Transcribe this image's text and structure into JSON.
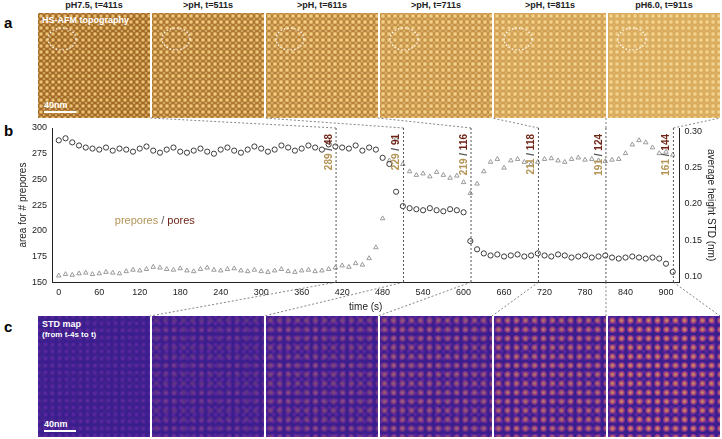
{
  "panel_letters": [
    "a",
    "b",
    "c"
  ],
  "panel_a": {
    "label": "HS-AFM topography",
    "frames": [
      "pH7.5, t=411s",
      ">pH, t=511s",
      ">pH, t=611s",
      ">pH, t=711s",
      ">pH, t=811s",
      "pH6.0, t=911s"
    ],
    "scale_bar": "40nm"
  },
  "panel_c": {
    "label": "STD map",
    "sublabel": "(from t-4s to t)",
    "frames": 6,
    "scale_bar": "40nm"
  },
  "chart_data": {
    "type": "scatter",
    "xlabel": "time (s)",
    "ylabel": "area for # prepores",
    "y2label": "average height STD (nm)",
    "xlim": [
      -10,
      920
    ],
    "xticks": [
      0,
      60,
      120,
      180,
      240,
      300,
      360,
      420,
      480,
      540,
      600,
      660,
      720,
      780,
      840,
      900
    ],
    "ylim": [
      150,
      300
    ],
    "yticks": [
      150,
      175,
      200,
      225,
      250,
      275,
      300
    ],
    "y2lim": [
      0.092,
      0.305
    ],
    "y2ticks": [
      {
        "value": 0.1,
        "label": "0.10"
      },
      0.15,
      {
        "value": 0.2,
        "label": "0.20"
      },
      0.25,
      {
        "value": 0.3,
        "label": "0.30"
      }
    ],
    "grid": false,
    "x": [
      0,
      10,
      20,
      30,
      40,
      50,
      60,
      70,
      80,
      90,
      100,
      110,
      120,
      130,
      140,
      150,
      160,
      170,
      180,
      190,
      200,
      210,
      220,
      230,
      240,
      250,
      260,
      270,
      280,
      290,
      300,
      310,
      320,
      330,
      340,
      350,
      360,
      370,
      380,
      390,
      400,
      410,
      420,
      430,
      440,
      450,
      460,
      470,
      480,
      490,
      500,
      510,
      520,
      530,
      540,
      550,
      560,
      570,
      580,
      590,
      600,
      610,
      620,
      630,
      640,
      650,
      660,
      670,
      680,
      690,
      700,
      710,
      720,
      730,
      740,
      750,
      760,
      770,
      780,
      790,
      800,
      810,
      820,
      830,
      840,
      850,
      860,
      870,
      880,
      890,
      900,
      910
    ],
    "series": [
      {
        "color": "#3a3a3a",
        "marker": "circle",
        "axis": "y",
        "values": [
          288,
          290,
          286,
          283,
          281,
          280,
          279,
          281,
          278,
          280,
          279,
          277,
          280,
          282,
          278,
          276,
          279,
          281,
          277,
          276,
          278,
          280,
          277,
          275,
          279,
          281,
          278,
          276,
          279,
          282,
          280,
          277,
          279,
          283,
          281,
          278,
          280,
          283,
          281,
          279,
          284,
          282,
          281,
          280,
          283,
          278,
          281,
          279,
          271,
          265,
          238,
          224,
          222,
          221,
          220,
          222,
          220,
          219,
          221,
          220,
          218,
          190,
          182,
          178,
          176,
          177,
          175,
          176,
          177,
          175,
          176,
          178,
          176,
          175,
          177,
          176,
          174,
          175,
          176,
          174,
          175,
          176,
          174,
          173,
          174,
          175,
          174,
          173,
          174,
          173,
          168,
          160
        ]
      },
      {
        "color": "#9a9a9a",
        "marker": "triangle",
        "axis": "y2",
        "values": [
          0.101,
          0.103,
          0.102,
          0.104,
          0.105,
          0.103,
          0.104,
          0.106,
          0.105,
          0.104,
          0.107,
          0.109,
          0.108,
          0.11,
          0.113,
          0.112,
          0.11,
          0.109,
          0.111,
          0.108,
          0.107,
          0.11,
          0.112,
          0.109,
          0.108,
          0.11,
          0.111,
          0.108,
          0.107,
          0.109,
          0.107,
          0.106,
          0.108,
          0.11,
          0.107,
          0.106,
          0.108,
          0.109,
          0.107,
          0.108,
          0.11,
          0.112,
          0.115,
          0.113,
          0.118,
          0.116,
          0.125,
          0.14,
          0.18,
          0.26,
          0.29,
          0.255,
          0.245,
          0.24,
          0.242,
          0.238,
          0.244,
          0.24,
          0.236,
          0.239,
          0.23,
          0.215,
          0.228,
          0.245,
          0.258,
          0.262,
          0.25,
          0.26,
          0.262,
          0.258,
          0.255,
          0.258,
          0.262,
          0.263,
          0.26,
          0.258,
          0.262,
          0.264,
          0.261,
          0.262,
          0.26,
          0.259,
          0.261,
          0.262,
          0.27,
          0.282,
          0.288,
          0.285,
          0.278,
          0.27,
          0.272,
          0.268
        ]
      }
    ],
    "legend_text": {
      "text": "prepores / pores",
      "colors": [
        "#b39455",
        "#6e2416"
      ]
    },
    "annotations": [
      {
        "x": 411,
        "text": "289 / 48",
        "colors": [
          "#b39455",
          "#6e2416"
        ]
      },
      {
        "x": 511,
        "text": "229 / 91",
        "colors": [
          "#b39455",
          "#6e2416"
        ]
      },
      {
        "x": 611,
        "text": "219 / 116",
        "colors": [
          "#b39455",
          "#6e2416"
        ]
      },
      {
        "x": 711,
        "text": "211 / 118",
        "colors": [
          "#b39455",
          "#6e2416"
        ]
      },
      {
        "x": 811,
        "text": "191 / 124",
        "colors": [
          "#b39455",
          "#6e2416"
        ]
      },
      {
        "x": 911,
        "text": "161 / 144",
        "colors": [
          "#b39455",
          "#6e2416"
        ]
      }
    ]
  }
}
